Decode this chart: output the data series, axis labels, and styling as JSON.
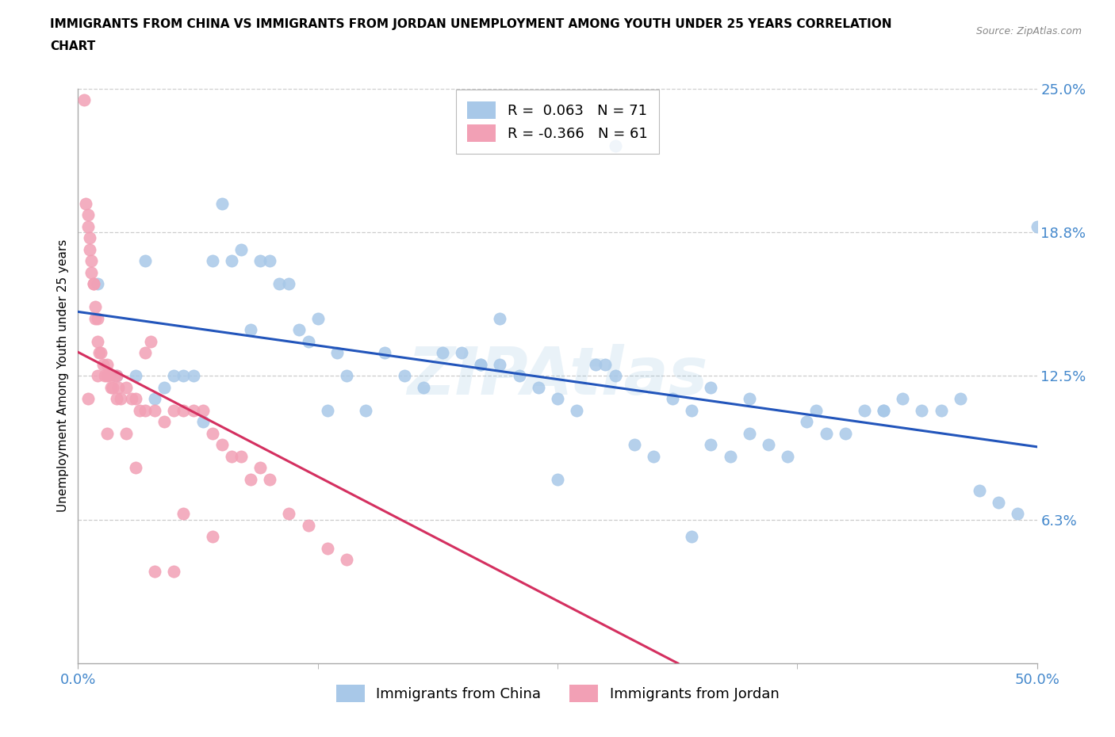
{
  "title_line1": "IMMIGRANTS FROM CHINA VS IMMIGRANTS FROM JORDAN UNEMPLOYMENT AMONG YOUTH UNDER 25 YEARS CORRELATION",
  "title_line2": "CHART",
  "source": "Source: ZipAtlas.com",
  "xlim": [
    0.0,
    50.0
  ],
  "ylim": [
    0.0,
    25.0
  ],
  "yticks": [
    0.0,
    6.25,
    12.5,
    18.75,
    25.0
  ],
  "ytick_labels": [
    "",
    "6.3%",
    "12.5%",
    "18.8%",
    "25.0%"
  ],
  "xticks": [
    0.0,
    50.0
  ],
  "xtick_labels": [
    "0.0%",
    "50.0%"
  ],
  "china_R": 0.063,
  "china_N": 71,
  "jordan_R": -0.366,
  "jordan_N": 61,
  "china_color": "#a8c8e8",
  "jordan_color": "#f2a0b5",
  "china_line_color": "#2255bb",
  "jordan_line_color": "#d43060",
  "watermark": "ZIPAtlas",
  "ylabel": "Unemployment Among Youth under 25 years",
  "china_x": [
    1.0,
    2.0,
    3.0,
    3.5,
    4.0,
    4.5,
    5.0,
    5.5,
    6.0,
    6.5,
    7.0,
    7.5,
    8.0,
    8.5,
    9.0,
    9.5,
    10.0,
    10.5,
    11.0,
    11.5,
    12.0,
    12.5,
    13.0,
    13.5,
    14.0,
    15.0,
    16.0,
    17.0,
    18.0,
    19.0,
    20.0,
    21.0,
    22.0,
    23.0,
    24.0,
    25.0,
    26.0,
    27.0,
    28.0,
    29.0,
    30.0,
    31.0,
    32.0,
    33.0,
    34.0,
    35.0,
    36.0,
    37.0,
    38.0,
    39.0,
    40.0,
    41.0,
    42.0,
    43.0,
    44.0,
    45.0,
    46.0,
    47.0,
    48.0,
    49.0,
    50.0,
    22.0,
    27.5,
    33.0,
    38.5,
    28.0,
    35.0,
    42.0,
    21.0,
    25.0,
    32.0
  ],
  "china_y": [
    16.5,
    12.5,
    12.5,
    17.5,
    11.5,
    12.0,
    12.5,
    12.5,
    12.5,
    10.5,
    17.5,
    20.0,
    17.5,
    18.0,
    14.5,
    17.5,
    17.5,
    16.5,
    16.5,
    14.5,
    14.0,
    15.0,
    11.0,
    13.5,
    12.5,
    11.0,
    13.5,
    12.5,
    12.0,
    13.5,
    13.5,
    13.0,
    13.0,
    12.5,
    12.0,
    11.5,
    11.0,
    13.0,
    12.5,
    9.5,
    9.0,
    11.5,
    11.0,
    9.5,
    9.0,
    11.5,
    9.5,
    9.0,
    10.5,
    10.0,
    10.0,
    11.0,
    11.0,
    11.5,
    11.0,
    11.0,
    11.5,
    7.5,
    7.0,
    6.5,
    19.0,
    15.0,
    13.0,
    12.0,
    11.0,
    22.5,
    10.0,
    11.0,
    13.0,
    8.0,
    5.5
  ],
  "jordan_x": [
    0.3,
    0.4,
    0.5,
    0.5,
    0.6,
    0.6,
    0.7,
    0.7,
    0.8,
    0.8,
    0.9,
    0.9,
    1.0,
    1.0,
    1.1,
    1.2,
    1.3,
    1.4,
    1.5,
    1.5,
    1.6,
    1.7,
    1.8,
    1.9,
    2.0,
    2.1,
    2.2,
    2.5,
    2.8,
    3.0,
    3.2,
    3.5,
    4.0,
    4.5,
    5.0,
    5.5,
    6.0,
    6.5,
    7.0,
    7.5,
    8.0,
    8.5,
    9.0,
    9.5,
    10.0,
    11.0,
    12.0,
    13.0,
    14.0,
    0.5,
    1.0,
    1.5,
    2.0,
    2.5,
    3.0,
    3.5,
    4.0,
    5.0,
    3.8,
    5.5,
    7.0
  ],
  "jordan_y": [
    24.5,
    20.0,
    19.5,
    19.0,
    18.5,
    18.0,
    17.5,
    17.0,
    16.5,
    16.5,
    15.5,
    15.0,
    15.0,
    14.0,
    13.5,
    13.5,
    13.0,
    12.5,
    13.0,
    12.5,
    12.5,
    12.0,
    12.0,
    12.5,
    12.5,
    12.0,
    11.5,
    12.0,
    11.5,
    11.5,
    11.0,
    11.0,
    11.0,
    10.5,
    11.0,
    11.0,
    11.0,
    11.0,
    10.0,
    9.5,
    9.0,
    9.0,
    8.0,
    8.5,
    8.0,
    6.5,
    6.0,
    5.0,
    4.5,
    11.5,
    12.5,
    10.0,
    11.5,
    10.0,
    8.5,
    13.5,
    4.0,
    4.0,
    14.0,
    6.5,
    5.5
  ]
}
